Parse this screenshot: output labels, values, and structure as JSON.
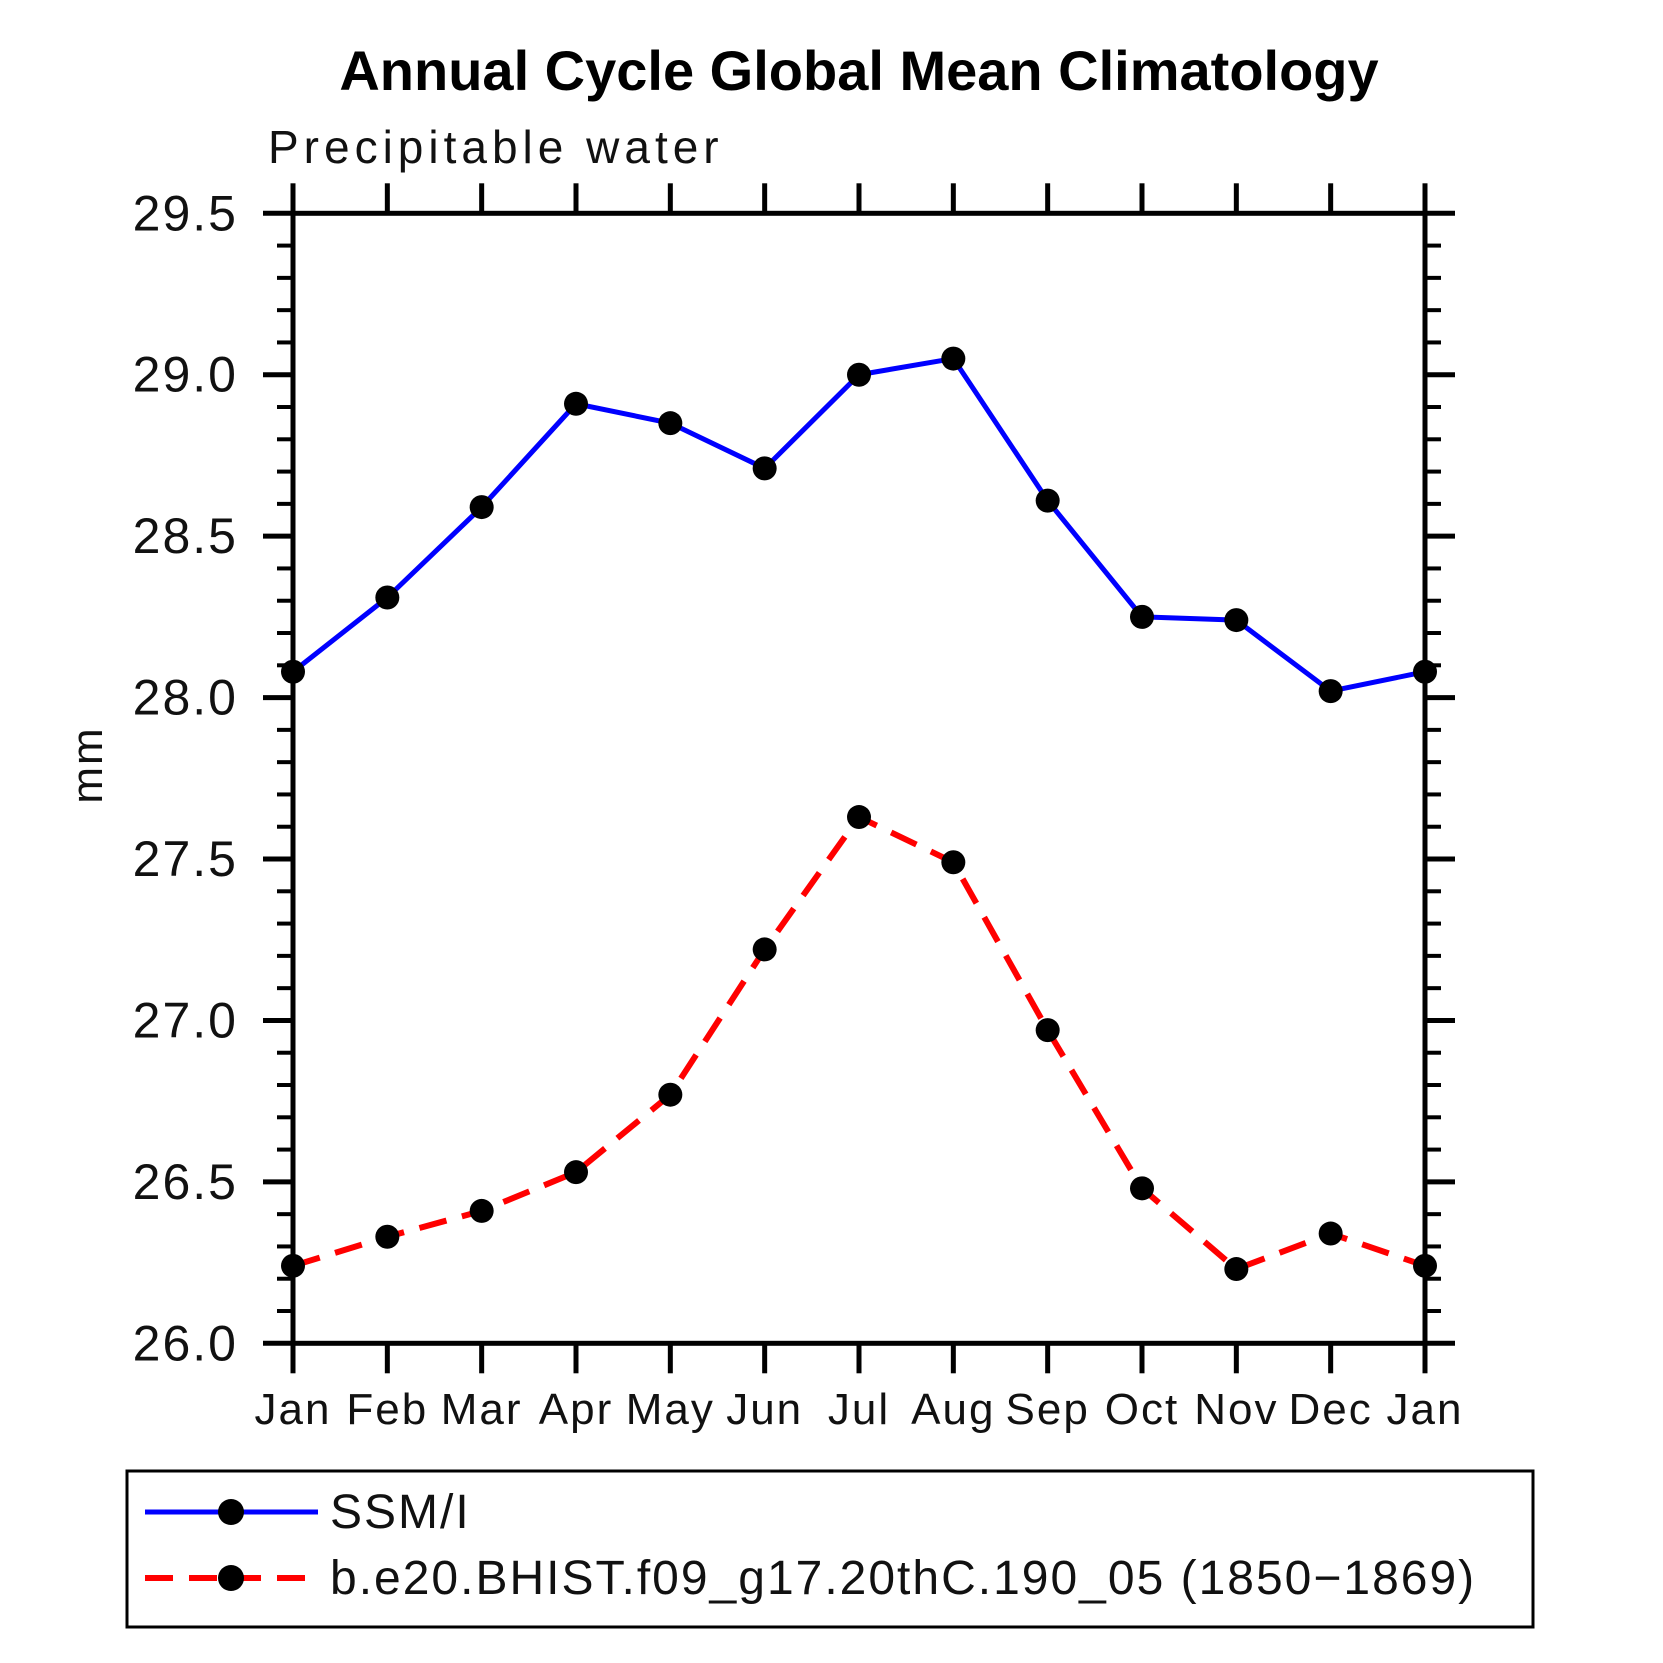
{
  "title": "Annual Cycle Global Mean Climatology",
  "subtitle": "Precipitable water",
  "ylabel": "mm",
  "colors": {
    "obs_line": "#0000ff",
    "model_line": "#ff0000",
    "marker": "#000000",
    "axis": "#000000"
  },
  "chart_data": {
    "type": "line",
    "title": "Annual Cycle Global Mean Climatology",
    "subtitle": "Precipitable water",
    "xlabel": "",
    "ylabel": "mm",
    "categories": [
      "Jan",
      "Feb",
      "Mar",
      "Apr",
      "May",
      "Jun",
      "Jul",
      "Aug",
      "Sep",
      "Oct",
      "Nov",
      "Dec",
      "Jan"
    ],
    "ylim": [
      26.0,
      29.5
    ],
    "ytick_step": 0.5,
    "yminor_step": 0.1,
    "grid": false,
    "legend_position": "bottom",
    "series": [
      {
        "name": "SSM/I",
        "color": "#0000ff",
        "style": "solid",
        "marker": "circle",
        "marker_color": "#000000",
        "values": [
          28.08,
          28.31,
          28.59,
          28.91,
          28.85,
          28.71,
          29.0,
          29.05,
          28.61,
          28.25,
          28.24,
          28.02,
          28.08
        ]
      },
      {
        "name": "b.e20.BHIST.f09_g17.20thC.190_05 (1850−1869)",
        "color": "#ff0000",
        "style": "dashed",
        "marker": "circle",
        "marker_color": "#000000",
        "values": [
          26.24,
          26.33,
          26.41,
          26.53,
          26.77,
          27.22,
          27.63,
          27.49,
          26.97,
          26.48,
          26.23,
          26.34,
          26.24
        ]
      }
    ]
  }
}
